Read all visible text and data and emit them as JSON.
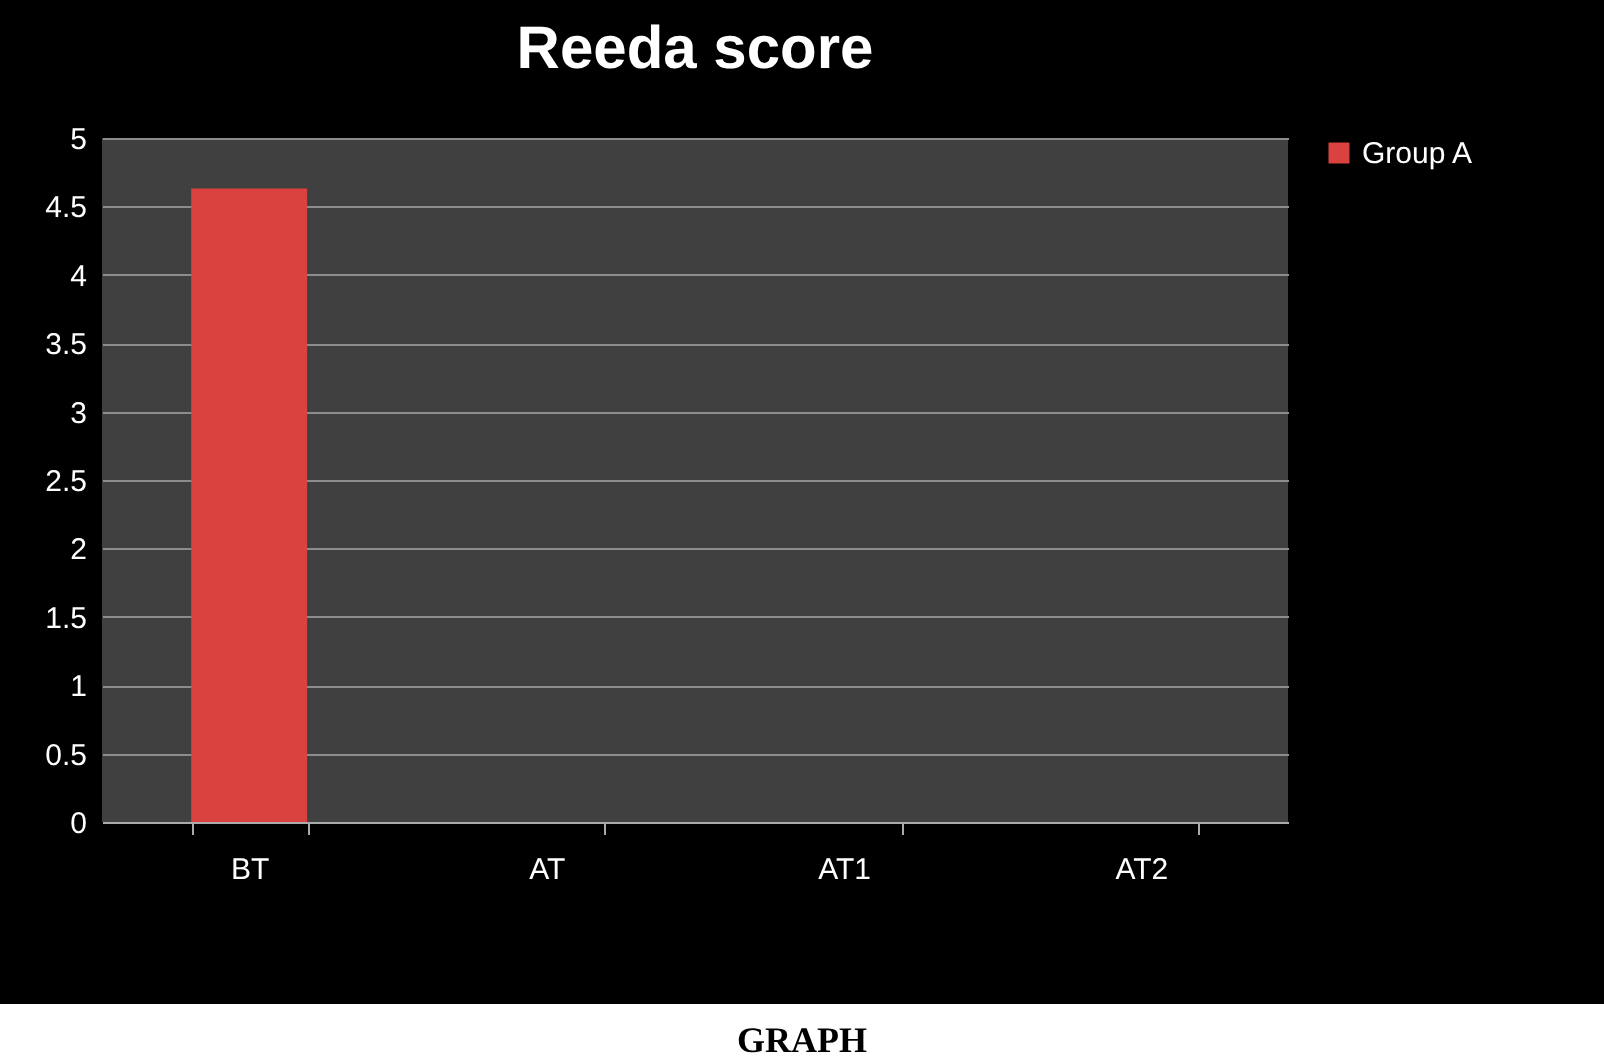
{
  "chart_data": {
    "type": "bar",
    "title": "Reeda score",
    "categories": [
      "BT",
      "AT",
      "AT1",
      "AT2"
    ],
    "series": [
      {
        "name": "Group A",
        "color": "#d9423f",
        "values": [
          4.63,
          0,
          0,
          0
        ]
      }
    ],
    "ylim": [
      0,
      5
    ],
    "yticks": [
      0,
      0.5,
      1,
      1.5,
      2,
      2.5,
      3,
      3.5,
      4,
      4.5,
      5
    ],
    "grid": "y",
    "legend": "right",
    "annotations": [
      "GRAPH"
    ]
  }
}
